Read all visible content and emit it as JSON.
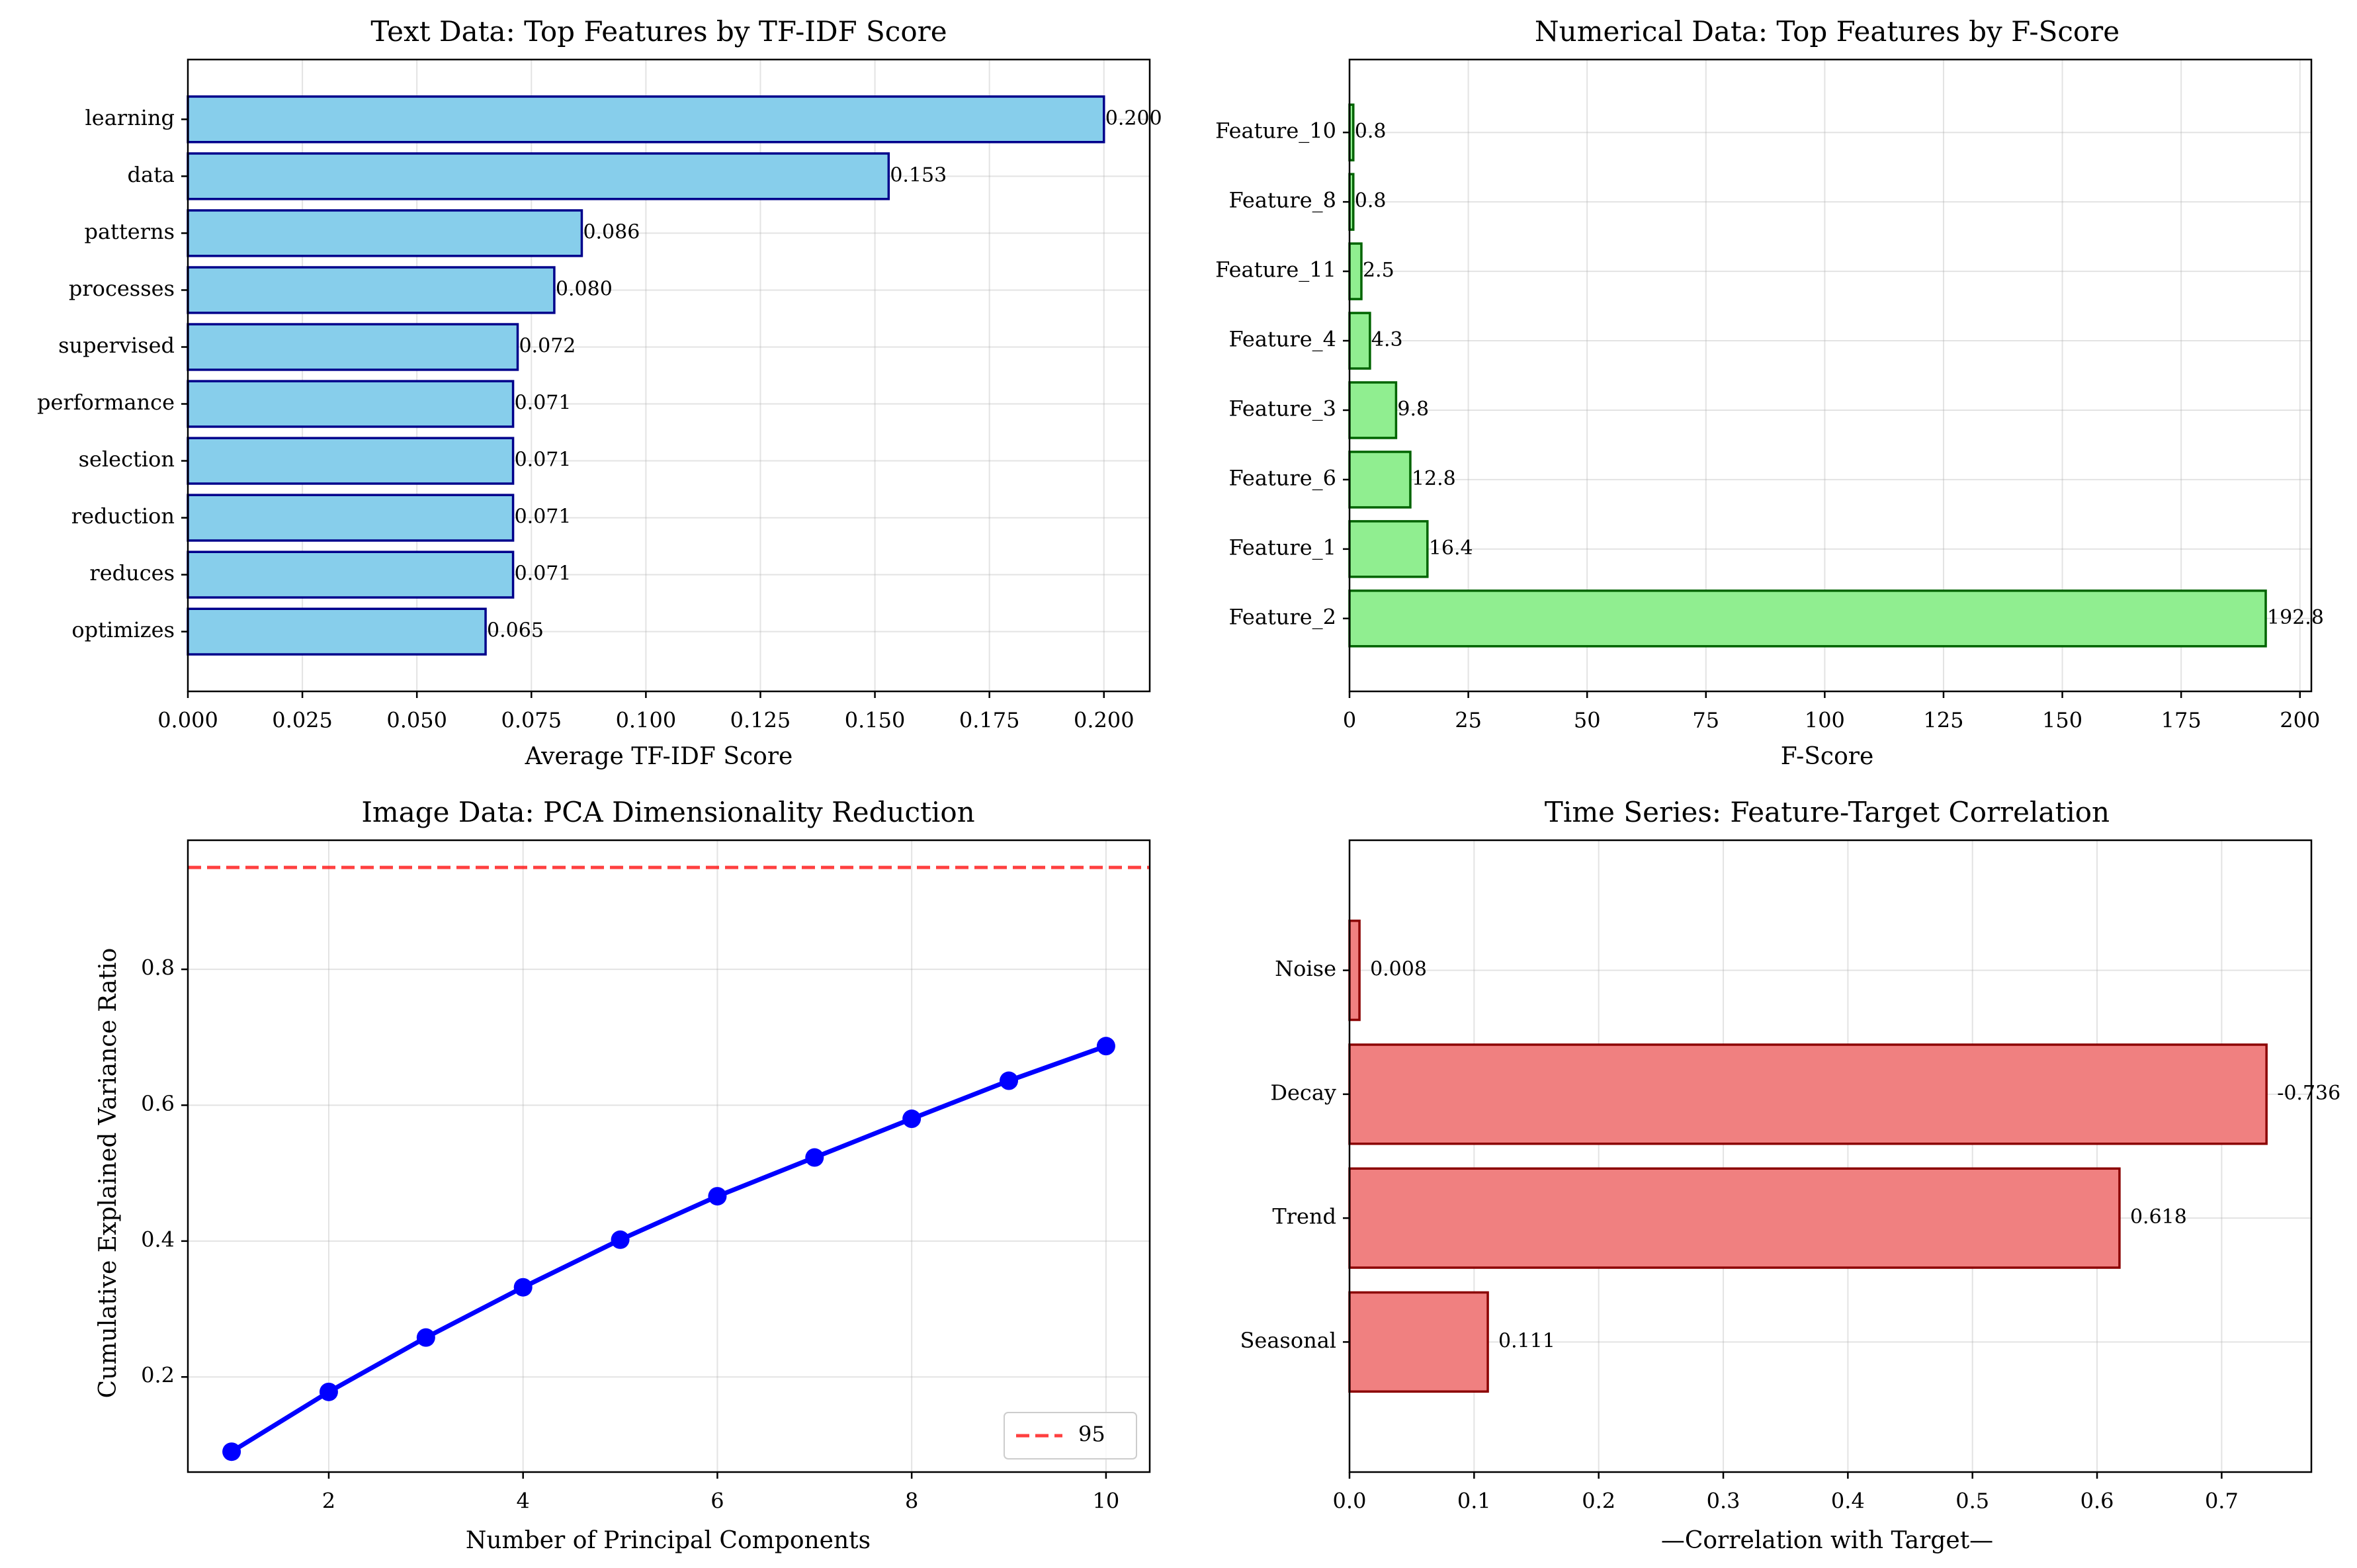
{
  "chart_data": [
    {
      "type": "bar",
      "orientation": "horizontal",
      "title": "Text Data: Top Features by TF-IDF Score",
      "xlabel": "Average TF-IDF Score",
      "ylabel": "",
      "categories": [
        "learning",
        "data",
        "patterns",
        "processes",
        "supervised",
        "performance",
        "selection",
        "reduction",
        "reduces",
        "optimizes"
      ],
      "values": [
        0.2,
        0.153,
        0.086,
        0.08,
        0.072,
        0.071,
        0.071,
        0.071,
        0.071,
        0.065
      ],
      "value_labels": [
        "0.200",
        "0.153",
        "0.086",
        "0.080",
        "0.072",
        "0.071",
        "0.071",
        "0.071",
        "0.071",
        "0.065"
      ],
      "xlim": [
        0,
        0.21
      ],
      "xticks": [
        "0.000",
        "0.025",
        "0.050",
        "0.075",
        "0.100",
        "0.125",
        "0.150",
        "0.175",
        "0.200"
      ],
      "grid": true,
      "bar_color": "#87CEEB",
      "edge_color": "#00008B"
    },
    {
      "type": "bar",
      "orientation": "horizontal",
      "title": "Numerical Data: Top Features by F-Score",
      "xlabel": "F-Score",
      "ylabel": "",
      "categories": [
        "Feature_10",
        "Feature_8",
        "Feature_11",
        "Feature_4",
        "Feature_3",
        "Feature_6",
        "Feature_1",
        "Feature_2"
      ],
      "values": [
        0.8,
        0.8,
        2.5,
        4.3,
        9.8,
        12.8,
        16.4,
        192.8
      ],
      "value_labels": [
        "0.8",
        "0.8",
        "2.5",
        "4.3",
        "9.8",
        "12.8",
        "16.4",
        "192.8"
      ],
      "xlim": [
        0,
        202.4
      ],
      "xticks": [
        "0",
        "25",
        "50",
        "75",
        "100",
        "125",
        "150",
        "175",
        "200"
      ],
      "grid": true,
      "bar_color": "#90EE90",
      "edge_color": "#006400"
    },
    {
      "type": "line",
      "title": "Image Data: PCA Dimensionality Reduction",
      "xlabel": "Number of Principal Components",
      "ylabel": "Cumulative Explained Variance Ratio",
      "x": [
        1,
        2,
        3,
        4,
        5,
        6,
        7,
        8,
        9,
        10
      ],
      "y": [
        0.09,
        0.178,
        0.258,
        0.332,
        0.402,
        0.466,
        0.523,
        0.58,
        0.636,
        0.687
      ],
      "xlim": [
        0.55,
        10.45
      ],
      "ylim": [
        0.06,
        0.99
      ],
      "xticks": [
        "2",
        "4",
        "6",
        "8",
        "10"
      ],
      "yticks": [
        "0.2",
        "0.4",
        "0.6",
        "0.8"
      ],
      "threshold": 0.95,
      "legend": [
        "95"
      ],
      "legend_position": "lower right",
      "grid": true,
      "line_color": "#0000FF",
      "threshold_color": "#FF0000"
    },
    {
      "type": "bar",
      "orientation": "horizontal",
      "title": "Time Series: Feature-Target Correlation",
      "xlabel": "—Correlation with Target—",
      "ylabel": "",
      "categories": [
        "Noise",
        "Decay",
        "Trend",
        "Seasonal"
      ],
      "values": [
        0.008,
        0.736,
        0.618,
        0.111
      ],
      "value_labels": [
        "0.008",
        "-0.736",
        "0.618",
        "0.111"
      ],
      "xlim": [
        0,
        0.772
      ],
      "xticks": [
        "0.0",
        "0.1",
        "0.2",
        "0.3",
        "0.4",
        "0.5",
        "0.6",
        "0.7"
      ],
      "grid": true,
      "bar_color": "#F08080",
      "edge_color": "#8B0000"
    }
  ]
}
